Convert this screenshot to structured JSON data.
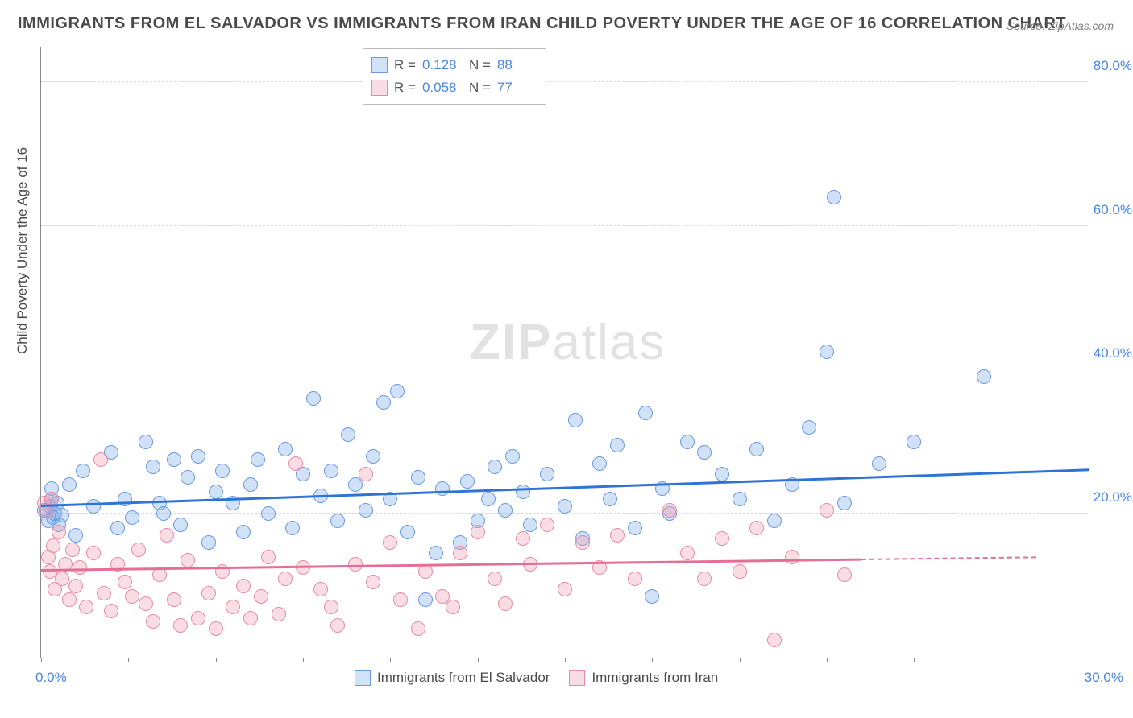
{
  "title": "IMMIGRANTS FROM EL SALVADOR VS IMMIGRANTS FROM IRAN CHILD POVERTY UNDER THE AGE OF 16 CORRELATION CHART",
  "source": "Source: ZipAtlas.com",
  "ylabel": "Child Poverty Under the Age of 16",
  "watermark_a": "ZIP",
  "watermark_b": "atlas",
  "chart": {
    "type": "scatter",
    "xlim": [
      0,
      30
    ],
    "ylim": [
      0,
      85
    ],
    "background_color": "#ffffff",
    "grid_color": "#d8d8d8",
    "ytick_values": [
      20,
      40,
      60,
      80
    ],
    "ytick_labels": [
      "20.0%",
      "40.0%",
      "60.0%",
      "80.0%"
    ],
    "xtick_values": [
      0,
      2.5,
      5,
      7.5,
      10,
      12.5,
      15,
      17.5,
      20,
      22.5,
      25,
      27.5,
      30
    ],
    "xtick_label_0": "0.0%",
    "xtick_label_30": "30.0%",
    "marker_radius": 9,
    "marker_stroke_width": 1.5,
    "series": [
      {
        "name": "Immigrants from El Salvador",
        "label": "Immigrants from El Salvador",
        "fill": "rgba(122,168,230,0.35)",
        "stroke": "#6a9ae0",
        "trend_color": "#2e74d8",
        "R": "0.128",
        "N": "88",
        "trend": {
          "x0": 0,
          "y0": 21.0,
          "x1": 30,
          "y1": 26.0
        },
        "points": [
          [
            0.1,
            20.5
          ],
          [
            0.2,
            19.0
          ],
          [
            0.25,
            21.0
          ],
          [
            0.3,
            22.0
          ],
          [
            0.3,
            23.5
          ],
          [
            0.35,
            19.5
          ],
          [
            0.4,
            20.0
          ],
          [
            0.45,
            21.5
          ],
          [
            0.5,
            18.5
          ],
          [
            0.6,
            19.8
          ],
          [
            0.8,
            24.0
          ],
          [
            1.0,
            17.0
          ],
          [
            1.2,
            26.0
          ],
          [
            1.5,
            21.0
          ],
          [
            2.0,
            28.5
          ],
          [
            2.2,
            18.0
          ],
          [
            2.4,
            22.0
          ],
          [
            2.6,
            19.5
          ],
          [
            3.0,
            30.0
          ],
          [
            3.2,
            26.5
          ],
          [
            3.4,
            21.5
          ],
          [
            3.5,
            20.0
          ],
          [
            3.8,
            27.5
          ],
          [
            4.0,
            18.5
          ],
          [
            4.2,
            25.0
          ],
          [
            4.5,
            28.0
          ],
          [
            4.8,
            16.0
          ],
          [
            5.0,
            23.0
          ],
          [
            5.2,
            26.0
          ],
          [
            5.5,
            21.5
          ],
          [
            5.8,
            17.5
          ],
          [
            6.0,
            24.0
          ],
          [
            6.2,
            27.5
          ],
          [
            6.5,
            20.0
          ],
          [
            7.0,
            29.0
          ],
          [
            7.2,
            18.0
          ],
          [
            7.5,
            25.5
          ],
          [
            7.8,
            36.0
          ],
          [
            8.0,
            22.5
          ],
          [
            8.3,
            26.0
          ],
          [
            8.5,
            19.0
          ],
          [
            8.8,
            31.0
          ],
          [
            9.0,
            24.0
          ],
          [
            9.3,
            20.5
          ],
          [
            9.5,
            28.0
          ],
          [
            9.8,
            35.5
          ],
          [
            10.0,
            22.0
          ],
          [
            10.2,
            37.0
          ],
          [
            10.5,
            17.5
          ],
          [
            10.8,
            25.0
          ],
          [
            11.0,
            8.0
          ],
          [
            11.3,
            14.5
          ],
          [
            11.5,
            23.5
          ],
          [
            12.0,
            16.0
          ],
          [
            12.2,
            24.5
          ],
          [
            12.5,
            19.0
          ],
          [
            12.8,
            22.0
          ],
          [
            13.0,
            26.5
          ],
          [
            13.3,
            20.5
          ],
          [
            13.5,
            28.0
          ],
          [
            13.8,
            23.0
          ],
          [
            14.0,
            18.5
          ],
          [
            14.5,
            25.5
          ],
          [
            15.0,
            21.0
          ],
          [
            15.3,
            33.0
          ],
          [
            15.5,
            16.5
          ],
          [
            16.0,
            27.0
          ],
          [
            16.3,
            22.0
          ],
          [
            16.5,
            29.5
          ],
          [
            17.0,
            18.0
          ],
          [
            17.3,
            34.0
          ],
          [
            17.5,
            8.5
          ],
          [
            17.8,
            23.5
          ],
          [
            18.0,
            20.0
          ],
          [
            18.5,
            30.0
          ],
          [
            19.0,
            28.5
          ],
          [
            19.5,
            25.5
          ],
          [
            20.0,
            22.0
          ],
          [
            20.5,
            29.0
          ],
          [
            21.0,
            19.0
          ],
          [
            21.5,
            24.0
          ],
          [
            22.0,
            32.0
          ],
          [
            22.5,
            42.5
          ],
          [
            22.7,
            64.0
          ],
          [
            23.0,
            21.5
          ],
          [
            24.0,
            27.0
          ],
          [
            25.0,
            30.0
          ],
          [
            27.0,
            39.0
          ]
        ]
      },
      {
        "name": "Immigrants from Iran",
        "label": "Immigrants from Iran",
        "fill": "rgba(238,158,178,0.35)",
        "stroke": "#e88ba4",
        "trend_color": "#e56f92",
        "R": "0.058",
        "N": "77",
        "trend": {
          "x0": 0,
          "y0": 12.0,
          "x1": 23.5,
          "y1": 13.5
        },
        "trend_dash": {
          "x0": 23.5,
          "y0": 13.5,
          "x1": 28.5,
          "y1": 13.8
        },
        "points": [
          [
            0.1,
            21.5
          ],
          [
            0.15,
            20.5
          ],
          [
            0.2,
            14.0
          ],
          [
            0.25,
            12.0
          ],
          [
            0.3,
            22.0
          ],
          [
            0.35,
            15.5
          ],
          [
            0.4,
            9.5
          ],
          [
            0.5,
            17.5
          ],
          [
            0.6,
            11.0
          ],
          [
            0.7,
            13.0
          ],
          [
            0.8,
            8.0
          ],
          [
            0.9,
            15.0
          ],
          [
            1.0,
            10.0
          ],
          [
            1.1,
            12.5
          ],
          [
            1.3,
            7.0
          ],
          [
            1.5,
            14.5
          ],
          [
            1.7,
            27.5
          ],
          [
            1.8,
            9.0
          ],
          [
            2.0,
            6.5
          ],
          [
            2.2,
            13.0
          ],
          [
            2.4,
            10.5
          ],
          [
            2.6,
            8.5
          ],
          [
            2.8,
            15.0
          ],
          [
            3.0,
            7.5
          ],
          [
            3.2,
            5.0
          ],
          [
            3.4,
            11.5
          ],
          [
            3.6,
            17.0
          ],
          [
            3.8,
            8.0
          ],
          [
            4.0,
            4.5
          ],
          [
            4.2,
            13.5
          ],
          [
            4.5,
            5.5
          ],
          [
            4.8,
            9.0
          ],
          [
            5.0,
            4.0
          ],
          [
            5.2,
            12.0
          ],
          [
            5.5,
            7.0
          ],
          [
            5.8,
            10.0
          ],
          [
            6.0,
            5.5
          ],
          [
            6.3,
            8.5
          ],
          [
            6.5,
            14.0
          ],
          [
            6.8,
            6.0
          ],
          [
            7.0,
            11.0
          ],
          [
            7.3,
            27.0
          ],
          [
            7.5,
            12.5
          ],
          [
            8.0,
            9.5
          ],
          [
            8.3,
            7.0
          ],
          [
            8.5,
            4.5
          ],
          [
            9.0,
            13.0
          ],
          [
            9.3,
            25.5
          ],
          [
            9.5,
            10.5
          ],
          [
            10.0,
            16.0
          ],
          [
            10.3,
            8.0
          ],
          [
            10.8,
            4.0
          ],
          [
            11.0,
            12.0
          ],
          [
            11.5,
            8.5
          ],
          [
            11.8,
            7.0
          ],
          [
            12.0,
            14.5
          ],
          [
            12.5,
            17.5
          ],
          [
            13.0,
            11.0
          ],
          [
            13.3,
            7.5
          ],
          [
            13.8,
            16.5
          ],
          [
            14.0,
            13.0
          ],
          [
            14.5,
            18.5
          ],
          [
            15.0,
            9.5
          ],
          [
            15.5,
            16.0
          ],
          [
            16.0,
            12.5
          ],
          [
            16.5,
            17.0
          ],
          [
            17.0,
            11.0
          ],
          [
            18.0,
            20.5
          ],
          [
            18.5,
            14.5
          ],
          [
            19.0,
            11.0
          ],
          [
            19.5,
            16.5
          ],
          [
            20.0,
            12.0
          ],
          [
            20.5,
            18.0
          ],
          [
            21.0,
            2.5
          ],
          [
            21.5,
            14.0
          ],
          [
            22.5,
            20.5
          ],
          [
            23.0,
            11.5
          ]
        ]
      }
    ]
  },
  "statbox": {
    "rows": [
      {
        "R_label": "R  =",
        "N_label": "N  ="
      },
      {
        "R_label": "R  =",
        "N_label": "N  ="
      }
    ]
  },
  "bottom_legend": {
    "items": [
      "Immigrants from El Salvador",
      "Immigrants from Iran"
    ]
  }
}
